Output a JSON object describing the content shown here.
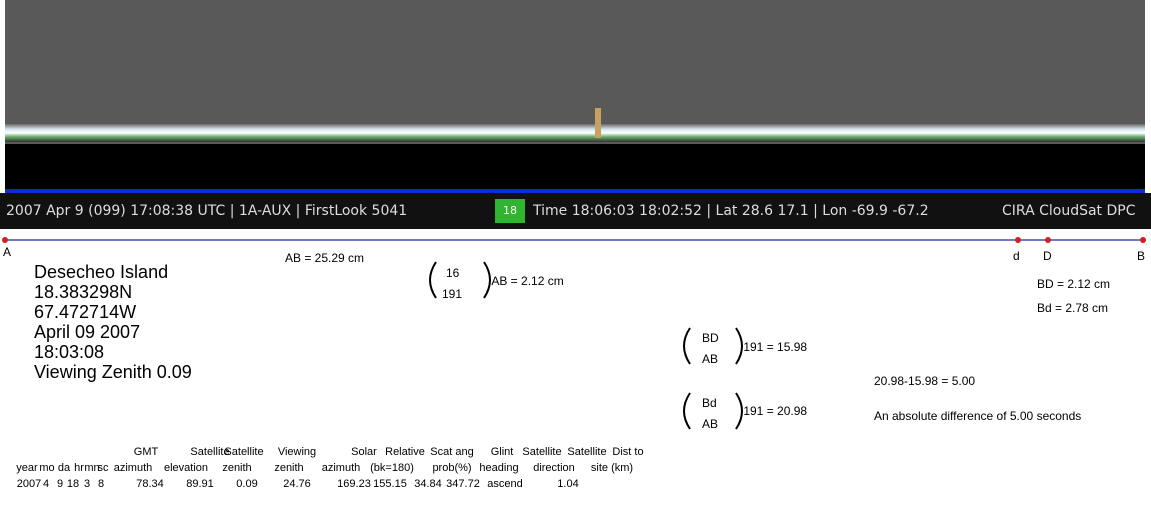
{
  "banner": {
    "left": "2007 Apr 9 (099) 17:08:38 UTC | 1A-AUX | FirstLook 5041",
    "badge": "18",
    "middle": "Time 18:06:03 18:02:52 | Lat 28.6 17.1 | Lon -69.9 -67.2",
    "right": "CIRA CloudSat DPC"
  },
  "points": {
    "A": "A",
    "d": "d",
    "D": "D",
    "B": "B"
  },
  "ab_length": "AB = 25.29 cm",
  "site_info": [
    "Desecheo Island",
    "18.383298N",
    "67.472714W",
    "April 09 2007",
    "18:03:08",
    "Viewing Zenith 0.09"
  ],
  "formula_1": {
    "top": "16",
    "bottom": "191",
    "result": ".AB = 2.12 cm"
  },
  "formula_2": {
    "top": "BD",
    "bottom": "AB",
    "result": ".191 = 15.98"
  },
  "formula_3": {
    "top": "Bd",
    "bottom": "AB",
    "result": ".191 = 20.98"
  },
  "distances": [
    "BD = 2.12 cm",
    "Bd = 2.78 cm"
  ],
  "difference": {
    "equation": "20.98-15.98 = 5.00",
    "text": "An absolute difference of 5.00 seconds"
  },
  "table": {
    "header_top": [
      "GMT",
      "Satellite",
      "Satellite",
      "Viewing",
      "Solar",
      "Relative",
      "Scat ang",
      "Glint",
      "Satellite",
      "Satellite",
      "Dist to"
    ],
    "header": [
      "year",
      "mo",
      "da",
      "hr",
      "mn",
      "sc",
      "azimuth",
      "elevation",
      "zenith",
      "zenith",
      "azimuth",
      "(bk=180)",
      "prob(%)",
      "heading",
      "direction",
      "site (km)"
    ],
    "row": [
      "2007",
      "4",
      "9",
      "18",
      "3",
      "8",
      "78.34",
      "89.91",
      "0.09",
      "24.76",
      "169.23",
      "155.15",
      "34.84",
      "347.72",
      "ascend",
      "1.04"
    ]
  }
}
